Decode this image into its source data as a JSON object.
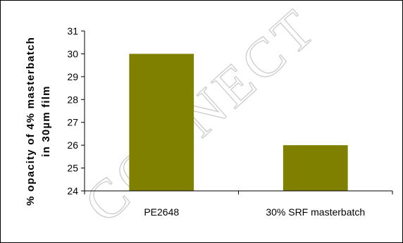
{
  "chart_data": {
    "type": "bar",
    "categories": [
      "PE2648",
      "30% SRF masterbatch"
    ],
    "values": [
      30,
      26
    ],
    "ylabel_lines": [
      "% opacity of 4% masterbatch",
      "in 30µm film"
    ],
    "xlabel": "",
    "ylim": [
      24,
      31
    ],
    "yticks": [
      24,
      25,
      26,
      27,
      28,
      29,
      30,
      31
    ],
    "grid": false,
    "bar_color": "#808000"
  },
  "watermark": "CONNECT"
}
